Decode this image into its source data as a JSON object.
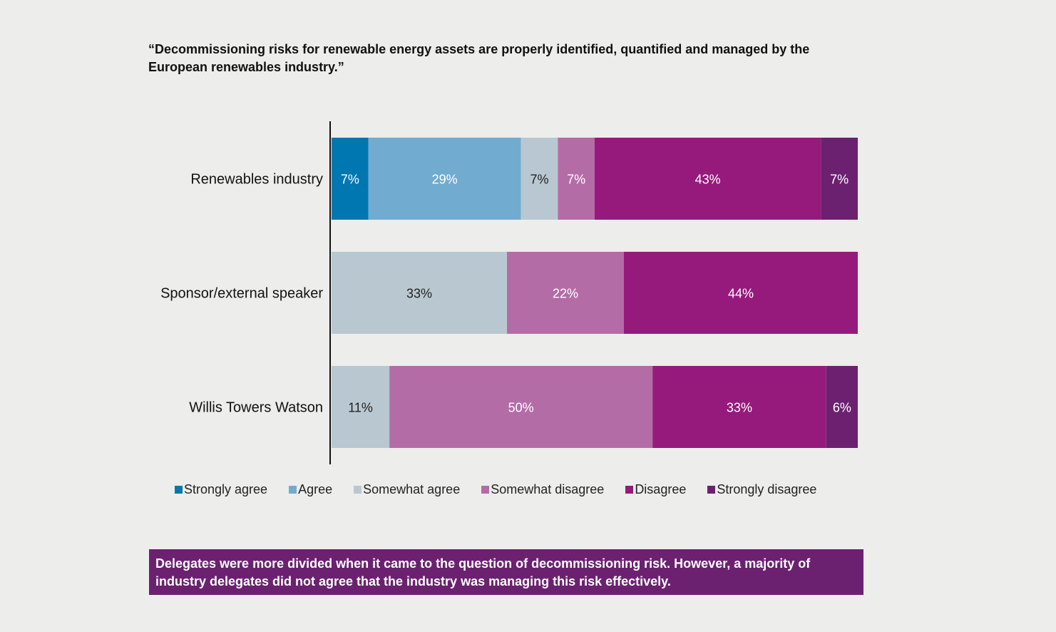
{
  "title": "“Decommissioning risks for renewable energy assets are properly identified, quantified and managed by the European renewables industry.”",
  "chart_data": {
    "type": "bar",
    "orientation": "horizontal",
    "stacked": true,
    "categories": [
      "Renewables industry",
      "Sponsor/external speaker",
      "Willis Towers Watson"
    ],
    "series": [
      {
        "name": "Strongly agree",
        "color": "#0077b0",
        "values": [
          7,
          0,
          0
        ],
        "labels": [
          "7%",
          "",
          ""
        ]
      },
      {
        "name": "Agree",
        "color": "#72abd0",
        "values": [
          29,
          0,
          0
        ],
        "labels": [
          "29%",
          "",
          ""
        ]
      },
      {
        "name": "Somewhat agree",
        "color": "#b9c8d0",
        "values": [
          7,
          33,
          11
        ],
        "labels": [
          "7%",
          "33%",
          "11%"
        ]
      },
      {
        "name": "Somewhat disagree",
        "color": "#b46ca7",
        "values": [
          7,
          22,
          50
        ],
        "labels": [
          "7%",
          "22%",
          "50%"
        ]
      },
      {
        "name": "Disagree",
        "color": "#961a7b",
        "values": [
          43,
          44,
          33
        ],
        "labels": [
          "43%",
          "44%",
          "33%"
        ]
      },
      {
        "name": "Strongly disagree",
        "color": "#6b2170",
        "values": [
          7,
          0,
          6
        ],
        "labels": [
          "7%",
          "",
          "6%"
        ]
      }
    ],
    "xlim": [
      0,
      100
    ],
    "grid": false,
    "legend_position": "bottom"
  },
  "note": "Delegates were more divided when it came to the question of decommissioning risk. However, a majority of industry delegates did not agree that the industry was managing this risk effectively."
}
